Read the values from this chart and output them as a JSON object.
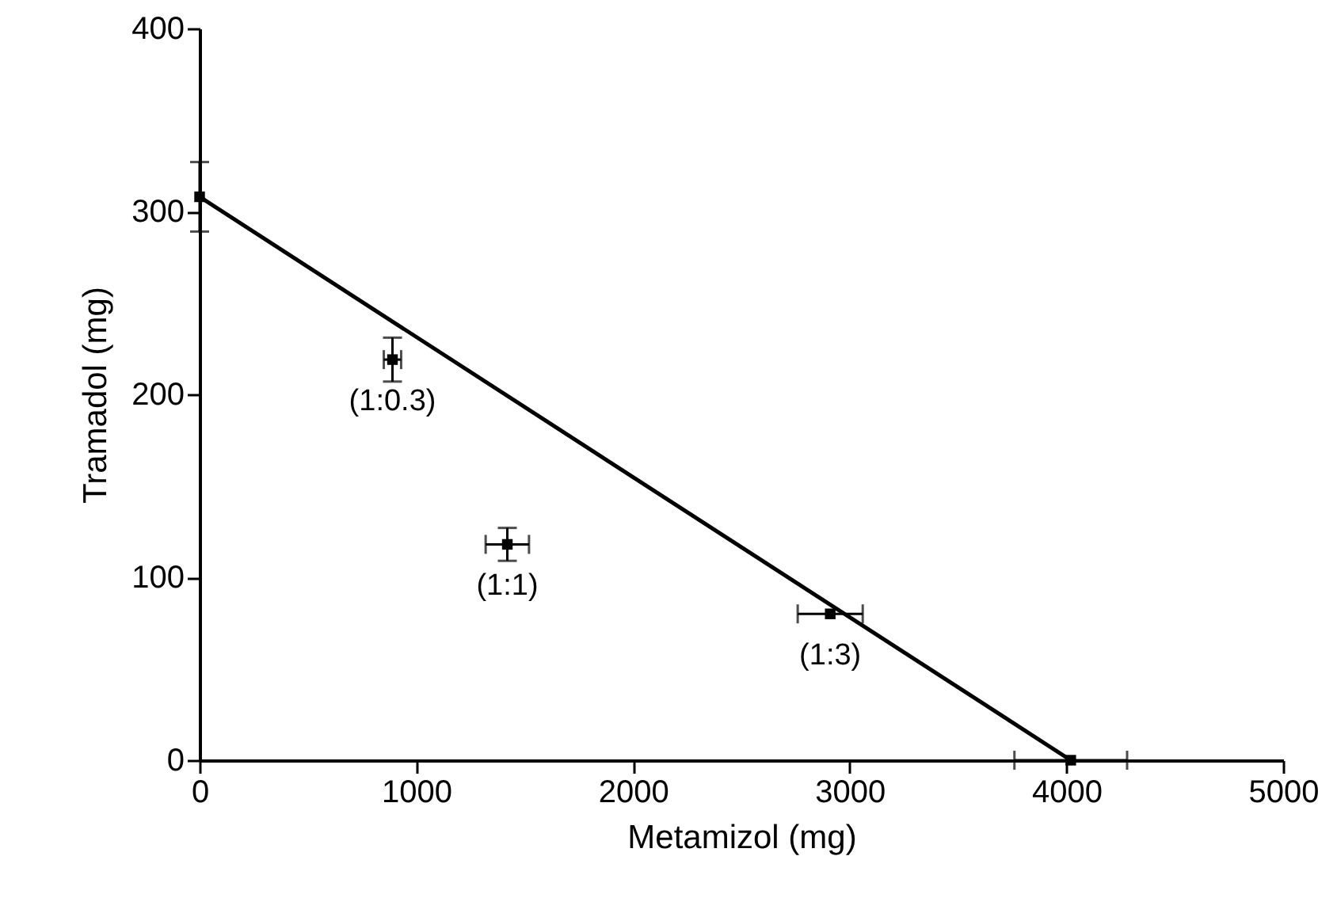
{
  "chart_data": {
    "type": "scatter",
    "xlabel": "Metamizol (mg)",
    "ylabel": "Tramadol (mg)",
    "xlim": [
      0,
      5000
    ],
    "xticks": [
      0,
      1000,
      2000,
      3000,
      4000,
      5000
    ],
    "ylim": [
      0,
      400
    ],
    "yticks": [
      0,
      100,
      200,
      300,
      400
    ],
    "series": [
      {
        "type": "line",
        "color": "#000000",
        "x": [
          0,
          4020
        ],
        "values": [
          308,
          0
        ],
        "marker": "none"
      },
      {
        "type": "scatter",
        "color": "#000000",
        "marker": "square",
        "x": [
          0,
          890,
          1420,
          2910,
          4020
        ],
        "values": [
          308,
          219,
          118,
          80,
          0
        ],
        "errors": [
          19,
          12,
          9,
          null,
          null
        ],
        "xerrors": [
          null,
          40,
          100,
          150,
          260
        ]
      }
    ],
    "annotations": [
      {
        "text": "(1:0.3)",
        "x": 890,
        "y": 219
      },
      {
        "text": "(1:1)",
        "x": 1420,
        "y": 118
      },
      {
        "text": "(1:3)",
        "x": 2910,
        "y": 80
      }
    ]
  }
}
